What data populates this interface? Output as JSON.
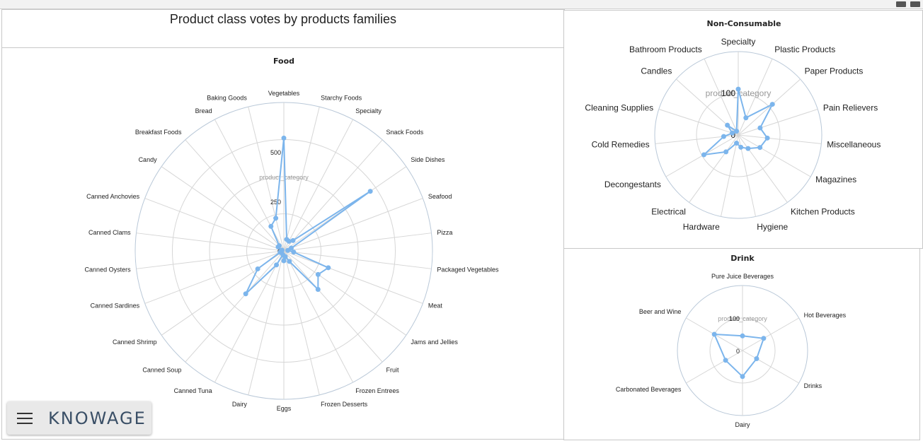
{
  "dashboard": {
    "title": "Product class votes by products families"
  },
  "menu": {
    "brand": "KNOWAGE"
  },
  "chart_data": [
    {
      "id": "food",
      "type": "radar",
      "title": "Food",
      "axis_title": "product_category",
      "ylim": [
        0,
        750
      ],
      "tick_labels": [
        "0",
        "250",
        "500"
      ],
      "categories": [
        "Vegetables",
        "Starchy Foods",
        "Specialty",
        "Snack Foods",
        "Side Dishes",
        "Seafood",
        "Pizza",
        "Packaged Vegetables",
        "Meat",
        "Jams and Jellies",
        "Fruit",
        "Frozen Entrees",
        "Frozen Desserts",
        "Eggs",
        "Dairy",
        "Canned Tuna",
        "Canned Soup",
        "Canned Shrimp",
        "Canned Sardines",
        "Canned Oysters",
        "Canned Clams",
        "Canned Anchovies",
        "Candy",
        "Breakfast Foods",
        "Bread",
        "Baking Goods"
      ],
      "series": [
        {
          "values": [
            570,
            60,
            55,
            70,
            530,
            40,
            20,
            50,
            240,
            210,
            260,
            60,
            30,
            50,
            20,
            80,
            290,
            160,
            20,
            15,
            10,
            10,
            35,
            35,
            140,
            170
          ]
        }
      ]
    },
    {
      "id": "non",
      "type": "radar",
      "title": "Non-Consumable",
      "axis_title": "product_category",
      "ylim": [
        0,
        200
      ],
      "tick_labels": [
        "0",
        "100"
      ],
      "categories": [
        "Specialty",
        "Plastic Products",
        "Paper Products",
        "Pain Relievers",
        "Miscellaneous",
        "Magazines",
        "Kitchen Products",
        "Hygiene",
        "Hardware",
        "Electrical",
        "Decongestants",
        "Cold Remedies",
        "Cleaning Supplies",
        "Candles",
        "Bathroom Products"
      ],
      "series": [
        {
          "values": [
            110,
            45,
            110,
            55,
            70,
            60,
            40,
            30,
            20,
            50,
            95,
            35,
            15,
            35,
            10
          ]
        }
      ]
    },
    {
      "id": "drink",
      "type": "radar",
      "title": "Drink",
      "axis_title": "product_category",
      "ylim": [
        0,
        200
      ],
      "tick_labels": [
        "0",
        "100"
      ],
      "categories": [
        "Pure Juice Beverages",
        "Hot Beverages",
        "Drinks",
        "Dairy",
        "Carbonated Beverages",
        "Beer and Wine"
      ],
      "series": [
        {
          "values": [
            45,
            75,
            50,
            80,
            60,
            100
          ]
        }
      ]
    }
  ]
}
